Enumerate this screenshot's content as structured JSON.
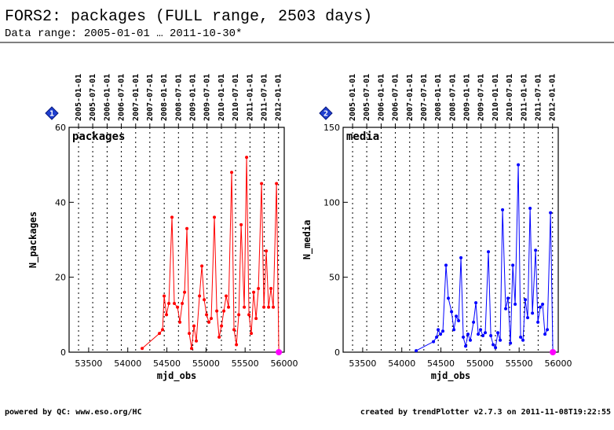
{
  "title": "FORS2: packages (FULL range, 2503 days)",
  "subtitle": "Data range: 2005-01-01 … 2011-10-30*",
  "footer_left": "powered by QC: www.eso.org/HC",
  "footer_right": "created by trendPlotter v2.7.3 on 2011-11-08T19:22:55",
  "chart_data": [
    {
      "type": "line",
      "badge": "1",
      "label": "packages",
      "ylabel": "N_packages",
      "xlabel": "mjd_obs",
      "color": "#ff0000",
      "last_point_color": "#ff00ff",
      "xlim": [
        53250,
        56000
      ],
      "xticks": [
        53500,
        54000,
        54500,
        55000,
        55500,
        56000
      ],
      "ylim": [
        0,
        60
      ],
      "yticks": [
        0,
        20,
        40,
        60
      ],
      "grid": true,
      "x2ticks": [
        {
          "value": 53371,
          "label": "2005-01-01"
        },
        {
          "value": 53552,
          "label": "2005-07-01"
        },
        {
          "value": 53736,
          "label": "2006-01-01"
        },
        {
          "value": 53917,
          "label": "2006-07-01"
        },
        {
          "value": 54101,
          "label": "2007-01-01"
        },
        {
          "value": 54282,
          "label": "2007-07-01"
        },
        {
          "value": 54466,
          "label": "2008-01-01"
        },
        {
          "value": 54648,
          "label": "2008-07-01"
        },
        {
          "value": 54832,
          "label": "2009-01-01"
        },
        {
          "value": 55013,
          "label": "2009-07-01"
        },
        {
          "value": 55197,
          "label": "2010-01-01"
        },
        {
          "value": 55378,
          "label": "2010-07-01"
        },
        {
          "value": 55562,
          "label": "2011-01-01"
        },
        {
          "value": 55743,
          "label": "2011-07-01"
        },
        {
          "value": 55927,
          "label": "2012-01-01"
        }
      ],
      "x": [
        54184,
        54405,
        54445,
        54465,
        54495,
        54525,
        54565,
        54595,
        54636,
        54666,
        54696,
        54726,
        54756,
        54786,
        54816,
        54846,
        54876,
        54917,
        54947,
        54977,
        55007,
        55037,
        55067,
        55107,
        55138,
        55168,
        55198,
        55228,
        55258,
        55288,
        55328,
        55358,
        55389,
        55419,
        55449,
        55489,
        55519,
        55549,
        55579,
        55609,
        55640,
        55670,
        55710,
        55740,
        55770,
        55800,
        55830,
        55860,
        55901,
        55931
      ],
      "values": [
        1,
        5,
        6,
        15,
        10,
        13,
        36,
        13,
        12,
        8,
        13,
        16,
        33,
        5,
        1,
        7,
        3,
        15,
        23,
        14,
        10,
        8,
        9,
        36,
        11,
        4,
        7,
        11,
        15,
        12,
        48,
        6,
        2,
        10,
        34,
        12,
        52,
        10,
        5,
        16,
        9,
        17,
        45,
        12,
        27,
        12,
        17,
        12,
        45,
        0
      ]
    },
    {
      "type": "line",
      "badge": "2",
      "label": "media",
      "ylabel": "N_media",
      "xlabel": "mjd_obs",
      "color": "#0000ff",
      "last_point_color": "#ff00ff",
      "xlim": [
        53250,
        56000
      ],
      "xticks": [
        53500,
        54000,
        54500,
        55000,
        55500,
        56000
      ],
      "ylim": [
        0,
        150
      ],
      "yticks": [
        0,
        50,
        100,
        150
      ],
      "grid": true,
      "x2ticks": [
        {
          "value": 53371,
          "label": "2005-01-01"
        },
        {
          "value": 53552,
          "label": "2005-07-01"
        },
        {
          "value": 53736,
          "label": "2006-01-01"
        },
        {
          "value": 53917,
          "label": "2006-07-01"
        },
        {
          "value": 54101,
          "label": "2007-01-01"
        },
        {
          "value": 54282,
          "label": "2007-07-01"
        },
        {
          "value": 54466,
          "label": "2008-01-01"
        },
        {
          "value": 54648,
          "label": "2008-07-01"
        },
        {
          "value": 54832,
          "label": "2009-01-01"
        },
        {
          "value": 55013,
          "label": "2009-07-01"
        },
        {
          "value": 55197,
          "label": "2010-01-01"
        },
        {
          "value": 55378,
          "label": "2010-07-01"
        },
        {
          "value": 55562,
          "label": "2011-01-01"
        },
        {
          "value": 55743,
          "label": "2011-07-01"
        },
        {
          "value": 55927,
          "label": "2012-01-01"
        }
      ],
      "x": [
        54184,
        54405,
        54445,
        54465,
        54495,
        54525,
        54565,
        54595,
        54636,
        54666,
        54696,
        54726,
        54756,
        54786,
        54816,
        54846,
        54876,
        54917,
        54947,
        54977,
        55007,
        55037,
        55067,
        55107,
        55138,
        55168,
        55198,
        55228,
        55258,
        55288,
        55328,
        55358,
        55389,
        55419,
        55449,
        55489,
        55519,
        55549,
        55579,
        55609,
        55640,
        55670,
        55710,
        55740,
        55770,
        55800,
        55830,
        55860,
        55901,
        55931
      ],
      "values": [
        1,
        7,
        10,
        15,
        12,
        14,
        58,
        36,
        27,
        15,
        24,
        21,
        63,
        10,
        4,
        12,
        8,
        20,
        33,
        12,
        15,
        11,
        13,
        67,
        11,
        5,
        3,
        13,
        8,
        95,
        29,
        36,
        6,
        58,
        32,
        125,
        10,
        8,
        35,
        23,
        96,
        26,
        68,
        20,
        30,
        32,
        12,
        15,
        93,
        0
      ]
    }
  ]
}
